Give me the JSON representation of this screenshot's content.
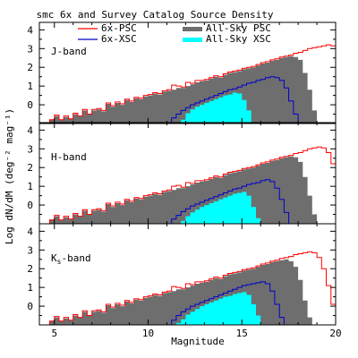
{
  "chart_data": {
    "type": "histogram",
    "title": "smc  6x and Survey Catalog Source Density",
    "xlabel": "Magnitude",
    "ylabel": "Log dN/dM (deg⁻² mag⁻¹)",
    "xlim": [
      4.2,
      20
    ],
    "ylim": [
      -1,
      4.4
    ],
    "x_ticks": [
      5,
      10,
      15,
      20
    ],
    "y_ticks": [
      0,
      1,
      2,
      3,
      4
    ],
    "bin_width": 0.25,
    "legend": {
      "placement": "top",
      "entries": [
        {
          "label": "6x-PSC",
          "color": "#ff0000",
          "style": "line"
        },
        {
          "label": "All-Sky PSC",
          "color": "#6e6e6e",
          "style": "fill"
        },
        {
          "label": "6x-XSC",
          "color": "#0000cc",
          "style": "line"
        },
        {
          "label": "All-Sky XSC",
          "color": "#00ffff",
          "style": "fill"
        }
      ]
    },
    "panels": [
      {
        "band_label": "J-band",
        "band_sub": "",
        "series": [
          {
            "name": "6x-PSC",
            "x0": 4.75,
            "values": [
              -0.8,
              -0.55,
              -0.8,
              -0.6,
              -0.75,
              -0.45,
              -0.6,
              -0.25,
              -0.5,
              -0.25,
              -0.2,
              -0.3,
              0.1,
              -0.05,
              0.15,
              0.05,
              0.3,
              0.2,
              0.4,
              0.35,
              0.5,
              0.55,
              0.65,
              0.6,
              0.75,
              0.8,
              1.05,
              1.0,
              0.95,
              1.2,
              1.15,
              1.3,
              1.3,
              1.35,
              1.45,
              1.55,
              1.5,
              1.65,
              1.75,
              1.8,
              1.85,
              1.95,
              2.0,
              2.05,
              2.15,
              2.25,
              2.3,
              2.4,
              2.45,
              2.55,
              2.6,
              2.65,
              2.75,
              2.8,
              2.9,
              3.0,
              3.05,
              3.1,
              3.15,
              3.2,
              3.15,
              3.05,
              2.8,
              2.3,
              1.6,
              0.8,
              -0.2,
              -1.0
            ]
          },
          {
            "name": "All-Sky PSC",
            "x0": 4.75,
            "values": [
              -0.8,
              -0.6,
              -0.8,
              -0.65,
              -0.75,
              -0.5,
              -0.6,
              -0.3,
              -0.5,
              -0.3,
              -0.25,
              -0.35,
              0.05,
              -0.1,
              0.1,
              0.0,
              0.25,
              0.15,
              0.35,
              0.3,
              0.45,
              0.5,
              0.6,
              0.55,
              0.7,
              0.75,
              0.8,
              0.9,
              0.9,
              1.0,
              1.1,
              1.2,
              1.25,
              1.3,
              1.4,
              1.5,
              1.45,
              1.6,
              1.7,
              1.75,
              1.8,
              1.9,
              1.95,
              2.0,
              2.1,
              2.2,
              2.25,
              2.35,
              2.4,
              2.5,
              2.55,
              2.6,
              2.55,
              2.4,
              1.7,
              0.8,
              -0.3,
              -1.0
            ]
          },
          {
            "name": "6x-XSC",
            "x0": 11.0,
            "values": [
              -1.0,
              -0.7,
              -0.5,
              -0.3,
              -0.15,
              0.0,
              0.1,
              0.2,
              0.3,
              0.4,
              0.5,
              0.6,
              0.7,
              0.8,
              0.85,
              0.95,
              1.05,
              1.15,
              1.2,
              1.3,
              1.35,
              1.45,
              1.5,
              1.45,
              1.3,
              0.9,
              0.2,
              -0.5,
              -1.0
            ]
          },
          {
            "name": "All-Sky XSC",
            "x0": 11.75,
            "values": [
              -0.8,
              -0.45,
              -0.25,
              -0.1,
              0.0,
              0.1,
              0.2,
              0.3,
              0.4,
              0.5,
              0.55,
              0.65,
              0.6,
              0.25,
              -0.3,
              -1.0
            ]
          }
        ]
      },
      {
        "band_label": "H-band",
        "band_sub": "",
        "series": [
          {
            "name": "6x-PSC",
            "x0": 4.75,
            "values": [
              -0.8,
              -0.55,
              -0.8,
              -0.6,
              -0.75,
              -0.45,
              -0.6,
              -0.25,
              -0.5,
              -0.25,
              -0.2,
              -0.3,
              0.1,
              -0.05,
              0.15,
              0.05,
              0.3,
              0.2,
              0.4,
              0.35,
              0.5,
              0.55,
              0.65,
              0.6,
              0.75,
              0.8,
              1.0,
              1.05,
              0.95,
              1.2,
              1.15,
              1.3,
              1.3,
              1.35,
              1.45,
              1.55,
              1.5,
              1.65,
              1.75,
              1.8,
              1.85,
              1.95,
              2.0,
              2.05,
              2.15,
              2.25,
              2.3,
              2.4,
              2.45,
              2.55,
              2.6,
              2.65,
              2.75,
              2.8,
              2.9,
              3.0,
              3.05,
              3.1,
              3.05,
              2.8,
              2.2,
              1.4,
              0.4,
              -1.0
            ]
          },
          {
            "name": "All-Sky PSC",
            "x0": 4.75,
            "values": [
              -0.8,
              -0.6,
              -0.8,
              -0.65,
              -0.75,
              -0.5,
              -0.6,
              -0.3,
              -0.5,
              -0.3,
              -0.25,
              -0.35,
              0.05,
              -0.1,
              0.1,
              0.0,
              0.25,
              0.15,
              0.35,
              0.3,
              0.45,
              0.5,
              0.6,
              0.55,
              0.7,
              0.75,
              0.8,
              0.9,
              0.9,
              1.0,
              1.1,
              1.2,
              1.25,
              1.3,
              1.4,
              1.5,
              1.45,
              1.6,
              1.7,
              1.75,
              1.8,
              1.9,
              1.95,
              2.0,
              2.1,
              2.2,
              2.25,
              2.35,
              2.4,
              2.5,
              2.55,
              2.6,
              2.55,
              2.3,
              1.5,
              0.5,
              -0.5,
              -1.0
            ]
          },
          {
            "name": "6x-XSC",
            "x0": 11.0,
            "values": [
              -1.0,
              -0.75,
              -0.55,
              -0.35,
              -0.2,
              -0.05,
              0.05,
              0.15,
              0.25,
              0.35,
              0.45,
              0.55,
              0.65,
              0.75,
              0.85,
              0.9,
              1.0,
              1.1,
              1.15,
              1.2,
              1.3,
              1.35,
              1.25,
              0.9,
              0.3,
              -0.4,
              -1.0
            ]
          },
          {
            "name": "All-Sky XSC",
            "x0": 11.5,
            "values": [
              -1.0,
              -0.85,
              -0.6,
              -0.4,
              -0.25,
              -0.1,
              0.0,
              0.1,
              0.2,
              0.3,
              0.4,
              0.5,
              0.6,
              0.65,
              0.7,
              0.5,
              -0.1,
              -0.7,
              -1.0
            ]
          }
        ]
      },
      {
        "band_label": "K",
        "band_sub": "s",
        "band_suffix": "-band",
        "series": [
          {
            "name": "6x-PSC",
            "x0": 4.75,
            "values": [
              -0.8,
              -0.55,
              -0.8,
              -0.6,
              -0.75,
              -0.45,
              -0.6,
              -0.25,
              -0.5,
              -0.25,
              -0.2,
              -0.3,
              0.1,
              -0.05,
              0.15,
              0.05,
              0.3,
              0.2,
              0.4,
              0.35,
              0.5,
              0.55,
              0.65,
              0.6,
              0.75,
              0.8,
              1.05,
              1.0,
              0.95,
              1.2,
              1.15,
              1.3,
              1.3,
              1.35,
              1.45,
              1.55,
              1.5,
              1.65,
              1.75,
              1.8,
              1.85,
              1.95,
              2.0,
              2.05,
              2.15,
              2.25,
              2.3,
              2.4,
              2.45,
              2.55,
              2.6,
              2.65,
              2.75,
              2.8,
              2.85,
              2.9,
              2.85,
              2.6,
              2.0,
              1.1,
              0.1,
              -1.0
            ]
          },
          {
            "name": "All-Sky PSC",
            "x0": 4.75,
            "values": [
              -0.8,
              -0.6,
              -0.8,
              -0.65,
              -0.75,
              -0.5,
              -0.6,
              -0.3,
              -0.5,
              -0.3,
              -0.25,
              -0.35,
              0.05,
              -0.1,
              0.1,
              0.0,
              0.25,
              0.15,
              0.35,
              0.3,
              0.45,
              0.5,
              0.6,
              0.55,
              0.7,
              0.75,
              0.8,
              0.9,
              0.9,
              1.0,
              1.1,
              1.2,
              1.25,
              1.3,
              1.4,
              1.5,
              1.45,
              1.6,
              1.7,
              1.75,
              1.8,
              1.9,
              1.95,
              2.0,
              2.1,
              2.2,
              2.25,
              2.35,
              2.4,
              2.45,
              2.5,
              2.4,
              2.1,
              1.4,
              0.3,
              -0.6,
              -1.0
            ]
          },
          {
            "name": "6x-XSC",
            "x0": 11.0,
            "values": [
              -1.0,
              -0.75,
              -0.5,
              -0.3,
              -0.15,
              0.0,
              0.1,
              0.2,
              0.3,
              0.4,
              0.5,
              0.6,
              0.7,
              0.8,
              0.9,
              1.0,
              1.1,
              1.15,
              1.2,
              1.25,
              1.3,
              1.2,
              0.8,
              0.1,
              -0.6,
              -1.0
            ]
          },
          {
            "name": "All-Sky XSC",
            "x0": 11.25,
            "values": [
              -1.0,
              -0.9,
              -0.7,
              -0.45,
              -0.3,
              -0.15,
              0.0,
              0.1,
              0.2,
              0.3,
              0.4,
              0.5,
              0.55,
              0.65,
              0.7,
              0.75,
              0.6,
              0.1,
              -0.5,
              -1.0
            ]
          }
        ]
      }
    ]
  }
}
